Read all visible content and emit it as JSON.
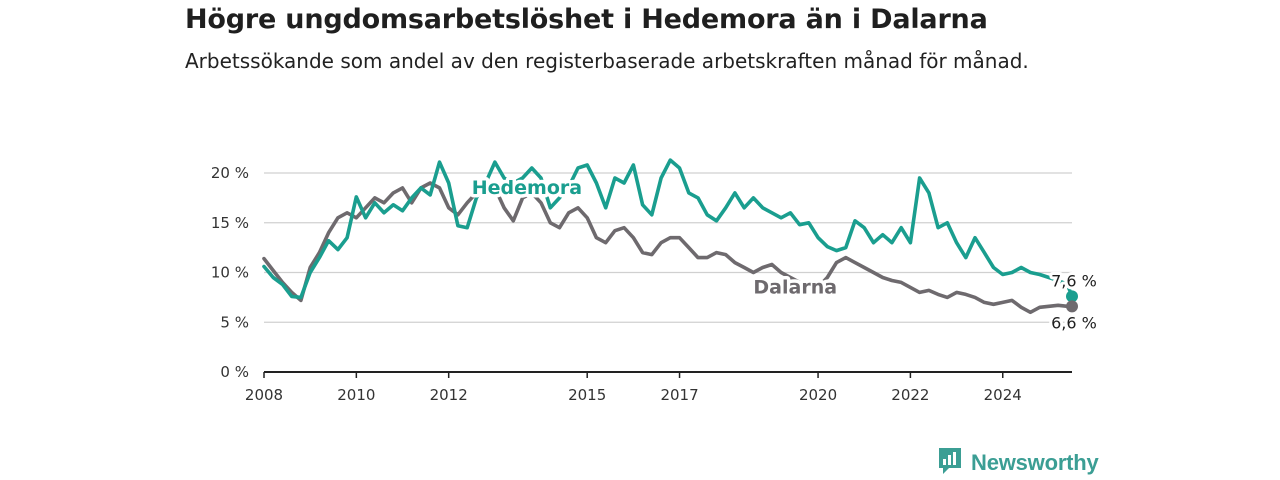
{
  "title": "Högre ungdomsarbetslöshet i Hedemora än i Dalarna",
  "subtitle": "Arbetssökande som andel av den registerbaserade arbetskraften månad för månad.",
  "brand": {
    "name": "Newsworthy",
    "icon": "newsworthy-logo-icon"
  },
  "colors": {
    "Hedemora": "#1a9e8f",
    "Dalarna": "#6e6a6e",
    "grid": "#d0d0d0",
    "axis": "#222222",
    "brand": "#3b9e94"
  },
  "chart_data": {
    "type": "line",
    "title": "Högre ungdomsarbetslöshet i Hedemora än i Dalarna",
    "subtitle": "Arbetssökande som andel av den registerbaserade arbetskraften månad för månad.",
    "xlabel": "",
    "ylabel": "",
    "xlim": [
      2008,
      2025.5
    ],
    "ylim": [
      0,
      20
    ],
    "x_ticks": [
      {
        "value": 2008,
        "label": "2008"
      },
      {
        "value": 2010,
        "label": "2010"
      },
      {
        "value": 2012,
        "label": "2012"
      },
      {
        "value": 2015,
        "label": "2015"
      },
      {
        "value": 2017,
        "label": "2017"
      },
      {
        "value": 2020,
        "label": "2020"
      },
      {
        "value": 2022,
        "label": "2022"
      },
      {
        "value": 2024,
        "label": "2024"
      }
    ],
    "y_ticks": [
      {
        "value": 0,
        "label": "0 %"
      },
      {
        "value": 5,
        "label": "5 %"
      },
      {
        "value": 10,
        "label": "10 %"
      },
      {
        "value": 15,
        "label": "15 %"
      },
      {
        "value": 20,
        "label": "20 %"
      }
    ],
    "grid": true,
    "legend": "inline labels",
    "series": [
      {
        "name": "Hedemora",
        "color": "#1a9e8f",
        "label_at": [
          2012.5,
          17.9
        ],
        "end_label": "7,6 %",
        "points": [
          [
            2008.0,
            10.6
          ],
          [
            2008.2,
            9.5
          ],
          [
            2008.4,
            8.8
          ],
          [
            2008.6,
            7.6
          ],
          [
            2008.8,
            7.5
          ],
          [
            2009.0,
            10.0
          ],
          [
            2009.2,
            11.5
          ],
          [
            2009.4,
            13.2
          ],
          [
            2009.6,
            12.3
          ],
          [
            2009.8,
            13.5
          ],
          [
            2010.0,
            17.6
          ],
          [
            2010.2,
            15.5
          ],
          [
            2010.4,
            17.0
          ],
          [
            2010.6,
            16.0
          ],
          [
            2010.8,
            16.8
          ],
          [
            2011.0,
            16.2
          ],
          [
            2011.2,
            17.5
          ],
          [
            2011.4,
            18.5
          ],
          [
            2011.6,
            17.8
          ],
          [
            2011.8,
            21.1
          ],
          [
            2012.0,
            19.0
          ],
          [
            2012.2,
            14.7
          ],
          [
            2012.4,
            14.5
          ],
          [
            2012.6,
            17.5
          ],
          [
            2012.8,
            19.0
          ],
          [
            2013.0,
            21.1
          ],
          [
            2013.2,
            19.5
          ],
          [
            2013.4,
            19.0
          ],
          [
            2013.6,
            19.5
          ],
          [
            2013.8,
            20.5
          ],
          [
            2014.0,
            19.5
          ],
          [
            2014.2,
            16.5
          ],
          [
            2014.4,
            17.5
          ],
          [
            2014.6,
            18.6
          ],
          [
            2014.8,
            20.5
          ],
          [
            2015.0,
            20.8
          ],
          [
            2015.2,
            19.0
          ],
          [
            2015.4,
            16.5
          ],
          [
            2015.6,
            19.5
          ],
          [
            2015.8,
            19.0
          ],
          [
            2016.0,
            20.8
          ],
          [
            2016.2,
            16.8
          ],
          [
            2016.4,
            15.8
          ],
          [
            2016.6,
            19.5
          ],
          [
            2016.8,
            21.3
          ],
          [
            2017.0,
            20.5
          ],
          [
            2017.2,
            18.0
          ],
          [
            2017.4,
            17.5
          ],
          [
            2017.6,
            15.8
          ],
          [
            2017.8,
            15.2
          ],
          [
            2018.0,
            16.5
          ],
          [
            2018.2,
            18.0
          ],
          [
            2018.4,
            16.5
          ],
          [
            2018.6,
            17.5
          ],
          [
            2018.8,
            16.5
          ],
          [
            2019.0,
            16.0
          ],
          [
            2019.2,
            15.5
          ],
          [
            2019.4,
            16.0
          ],
          [
            2019.6,
            14.8
          ],
          [
            2019.8,
            15.0
          ],
          [
            2020.0,
            13.5
          ],
          [
            2020.2,
            12.6
          ],
          [
            2020.4,
            12.2
          ],
          [
            2020.6,
            12.5
          ],
          [
            2020.8,
            15.2
          ],
          [
            2021.0,
            14.5
          ],
          [
            2021.2,
            13.0
          ],
          [
            2021.4,
            13.8
          ],
          [
            2021.6,
            13.0
          ],
          [
            2021.8,
            14.5
          ],
          [
            2022.0,
            13.0
          ],
          [
            2022.2,
            19.5
          ],
          [
            2022.4,
            18.0
          ],
          [
            2022.6,
            14.5
          ],
          [
            2022.8,
            15.0
          ],
          [
            2023.0,
            13.0
          ],
          [
            2023.2,
            11.5
          ],
          [
            2023.4,
            13.5
          ],
          [
            2023.6,
            12.0
          ],
          [
            2023.8,
            10.5
          ],
          [
            2024.0,
            9.8
          ],
          [
            2024.2,
            10.0
          ],
          [
            2024.4,
            10.5
          ],
          [
            2024.6,
            10.0
          ],
          [
            2024.8,
            9.8
          ],
          [
            2025.0,
            9.5
          ],
          [
            2025.2,
            9.2
          ],
          [
            2025.4,
            8.8
          ],
          [
            2025.5,
            7.6
          ]
        ]
      },
      {
        "name": "Dalarna",
        "color": "#6e6a6e",
        "label_at": [
          2018.6,
          7.9
        ],
        "end_label": "6,6 %",
        "points": [
          [
            2008.0,
            11.4
          ],
          [
            2008.2,
            10.2
          ],
          [
            2008.4,
            9.0
          ],
          [
            2008.6,
            8.0
          ],
          [
            2008.8,
            7.2
          ],
          [
            2009.0,
            10.5
          ],
          [
            2009.2,
            12.0
          ],
          [
            2009.4,
            14.0
          ],
          [
            2009.6,
            15.5
          ],
          [
            2009.8,
            16.0
          ],
          [
            2010.0,
            15.5
          ],
          [
            2010.2,
            16.5
          ],
          [
            2010.4,
            17.5
          ],
          [
            2010.6,
            17.0
          ],
          [
            2010.8,
            18.0
          ],
          [
            2011.0,
            18.5
          ],
          [
            2011.2,
            17.0
          ],
          [
            2011.4,
            18.5
          ],
          [
            2011.6,
            19.0
          ],
          [
            2011.8,
            18.5
          ],
          [
            2012.0,
            16.5
          ],
          [
            2012.2,
            15.8
          ],
          [
            2012.4,
            17.0
          ],
          [
            2012.6,
            18.0
          ],
          [
            2012.8,
            19.0
          ],
          [
            2013.0,
            18.5
          ],
          [
            2013.2,
            16.5
          ],
          [
            2013.4,
            15.2
          ],
          [
            2013.6,
            17.5
          ],
          [
            2013.8,
            18.0
          ],
          [
            2014.0,
            17.0
          ],
          [
            2014.2,
            15.0
          ],
          [
            2014.4,
            14.5
          ],
          [
            2014.6,
            16.0
          ],
          [
            2014.8,
            16.5
          ],
          [
            2015.0,
            15.5
          ],
          [
            2015.2,
            13.5
          ],
          [
            2015.4,
            13.0
          ],
          [
            2015.6,
            14.2
          ],
          [
            2015.8,
            14.5
          ],
          [
            2016.0,
            13.5
          ],
          [
            2016.2,
            12.0
          ],
          [
            2016.4,
            11.8
          ],
          [
            2016.6,
            13.0
          ],
          [
            2016.8,
            13.5
          ],
          [
            2017.0,
            13.5
          ],
          [
            2017.2,
            12.5
          ],
          [
            2017.4,
            11.5
          ],
          [
            2017.6,
            11.5
          ],
          [
            2017.8,
            12.0
          ],
          [
            2018.0,
            11.8
          ],
          [
            2018.2,
            11.0
          ],
          [
            2018.4,
            10.5
          ],
          [
            2018.6,
            10.0
          ],
          [
            2018.8,
            10.5
          ],
          [
            2019.0,
            10.8
          ],
          [
            2019.2,
            10.0
          ],
          [
            2019.4,
            9.5
          ],
          [
            2019.6,
            9.0
          ],
          [
            2019.8,
            8.8
          ],
          [
            2020.0,
            8.5
          ],
          [
            2020.2,
            9.5
          ],
          [
            2020.4,
            11.0
          ],
          [
            2020.6,
            11.5
          ],
          [
            2020.8,
            11.0
          ],
          [
            2021.0,
            10.5
          ],
          [
            2021.2,
            10.0
          ],
          [
            2021.4,
            9.5
          ],
          [
            2021.6,
            9.2
          ],
          [
            2021.8,
            9.0
          ],
          [
            2022.0,
            8.5
          ],
          [
            2022.2,
            8.0
          ],
          [
            2022.4,
            8.2
          ],
          [
            2022.6,
            7.8
          ],
          [
            2022.8,
            7.5
          ],
          [
            2023.0,
            8.0
          ],
          [
            2023.2,
            7.8
          ],
          [
            2023.4,
            7.5
          ],
          [
            2023.6,
            7.0
          ],
          [
            2023.8,
            6.8
          ],
          [
            2024.0,
            7.0
          ],
          [
            2024.2,
            7.2
          ],
          [
            2024.4,
            6.5
          ],
          [
            2024.6,
            6.0
          ],
          [
            2024.8,
            6.5
          ],
          [
            2025.0,
            6.6
          ],
          [
            2025.2,
            6.7
          ],
          [
            2025.4,
            6.6
          ],
          [
            2025.5,
            6.6
          ]
        ]
      }
    ]
  }
}
